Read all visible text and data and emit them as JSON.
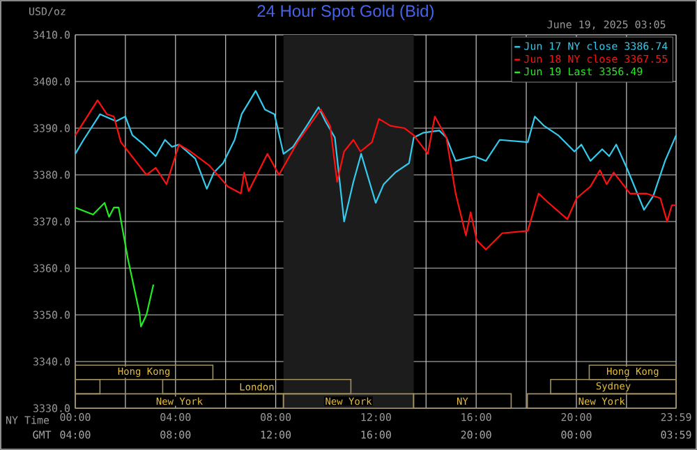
{
  "chart_data": {
    "type": "line",
    "title": "24 Hour Spot Gold (Bid)",
    "subtitle": "June 19, 2025 03:05",
    "ylabel": "USD/oz",
    "xlabel": "NY Time",
    "xlim": [
      0,
      23.98
    ],
    "ylim": [
      3330,
      3410
    ],
    "xticks": [
      {
        "value": 0,
        "label": "00:00"
      },
      {
        "value": 2,
        "label": null
      },
      {
        "value": 4,
        "label": "04:00"
      },
      {
        "value": 6,
        "label": null
      },
      {
        "value": 8,
        "label": "08:00"
      },
      {
        "value": 10,
        "label": null
      },
      {
        "value": 12,
        "label": "12:00"
      },
      {
        "value": 14,
        "label": null
      },
      {
        "value": 16,
        "label": "16:00"
      },
      {
        "value": 18,
        "label": null
      },
      {
        "value": 20,
        "label": "20:00"
      },
      {
        "value": 22,
        "label": null
      },
      {
        "value": 23.98,
        "label": "23:59"
      }
    ],
    "annotations": [
      "GMT",
      "04:00",
      "08:00",
      "12:00",
      "16:00",
      "20:00",
      "00:00",
      "03:59",
      "Hong Kong",
      "Hong Kong",
      "London",
      "Sydney",
      "New York",
      "New York",
      "NY",
      "New York"
    ],
    "yticks": [
      {
        "value": 3330,
        "label": "3330.0"
      },
      {
        "value": 3340,
        "label": "3340.0"
      },
      {
        "value": 3350,
        "label": "3350.0"
      },
      {
        "value": 3360,
        "label": "3360.0"
      },
      {
        "value": 3370,
        "label": "3370.0"
      },
      {
        "value": 3380,
        "label": "3380.0"
      },
      {
        "value": 3390,
        "label": "3390.0"
      },
      {
        "value": 3400,
        "label": "3400.0"
      },
      {
        "value": 3410,
        "label": "3410.0"
      }
    ],
    "grid": true,
    "legend": "top right",
    "line_style": "solid",
    "marker": "none",
    "bands": [
      {
        "axis": "x",
        "from": 8.31,
        "to": 13.51,
        "color": "#1c1c1c"
      }
    ],
    "series": [
      {
        "name": "Jun 17 NY close 3386.74",
        "color": "#33ccee",
        "x": [
          0,
          0.33,
          0.99,
          1.63,
          2.0,
          2.28,
          2.73,
          3.21,
          3.58,
          3.86,
          4.14,
          4.79,
          5.25,
          5.53,
          5.9,
          6.36,
          6.64,
          7.2,
          7.57,
          7.95,
          8.31,
          8.69,
          9.24,
          9.71,
          9.98,
          10.36,
          10.73,
          11.1,
          11.41,
          11.99,
          12.31,
          12.77,
          13.32,
          13.51,
          13.88,
          14.53,
          14.81,
          15.18,
          15.92,
          16.39,
          16.94,
          18.06,
          18.34,
          18.71,
          19.27,
          19.92,
          20.2,
          20.56,
          21.03,
          21.31,
          21.59,
          22.05,
          22.7,
          23.07,
          23.54,
          23.98
        ],
        "values": [
          3384.5,
          3387.5,
          3393,
          3391.5,
          3392.5,
          3388.5,
          3386.5,
          3384,
          3387.5,
          3386,
          3386.5,
          3383.5,
          3377,
          3380.5,
          3382.5,
          3387.5,
          3393,
          3398,
          3394,
          3393,
          3384.5,
          3386,
          3390.5,
          3394.5,
          3391.5,
          3388,
          3370,
          3378.5,
          3384.5,
          3374,
          3378,
          3380.5,
          3382.5,
          3388,
          3389,
          3389.5,
          3388,
          3383,
          3384,
          3383,
          3387.5,
          3387,
          3392.5,
          3390.5,
          3388.5,
          3385,
          3386.5,
          3383,
          3385.5,
          3384,
          3386.5,
          3381,
          3372.5,
          3375.5,
          3383,
          3388.5
        ]
      },
      {
        "name": "Jun 18 NY close 3367.55",
        "color": "#ff1010",
        "x": [
          0,
          0.89,
          1.26,
          1.54,
          1.82,
          2.84,
          3.21,
          3.64,
          4.14,
          4.6,
          5.35,
          6.09,
          6.61,
          6.74,
          6.92,
          7.67,
          8.13,
          8.87,
          9.8,
          10.17,
          10.45,
          10.73,
          11.1,
          11.38,
          11.84,
          12.12,
          12.58,
          13.14,
          13.51,
          14.07,
          14.35,
          14.81,
          15.18,
          15.59,
          15.78,
          16.02,
          16.39,
          17.04,
          18.06,
          18.49,
          18.89,
          19.64,
          20.01,
          20.56,
          20.94,
          21.21,
          21.49,
          22.14,
          22.79,
          23.35,
          23.62,
          23.81,
          23.98
        ],
        "values": [
          3388.5,
          3396,
          3393,
          3392.5,
          3387,
          3380,
          3381.5,
          3378,
          3386.5,
          3385,
          3382,
          3377.5,
          3376,
          3380.5,
          3376.5,
          3384.5,
          3380,
          3387,
          3394,
          3390.5,
          3378.5,
          3385,
          3387.5,
          3385,
          3387,
          3392,
          3390.5,
          3390,
          3388.5,
          3384.5,
          3392.5,
          3388,
          3376,
          3367,
          3372,
          3366,
          3364,
          3367.5,
          3368,
          3376,
          3374,
          3370.5,
          3375,
          3377.5,
          3381,
          3378,
          3380.5,
          3376,
          3376,
          3375,
          3370,
          3373.5,
          3373.5
        ]
      },
      {
        "name": "Jun 19 Last 3356.49",
        "color": "#22ee22",
        "x": [
          0,
          0.71,
          1.17,
          1.35,
          1.54,
          1.73,
          2.1,
          2.38,
          2.56,
          2.62,
          2.84,
          3.12
        ],
        "values": [
          3373,
          3371.5,
          3374,
          3371,
          3373,
          3373,
          3362,
          3355,
          3350.5,
          3347.5,
          3350,
          3356.5
        ]
      }
    ]
  }
}
